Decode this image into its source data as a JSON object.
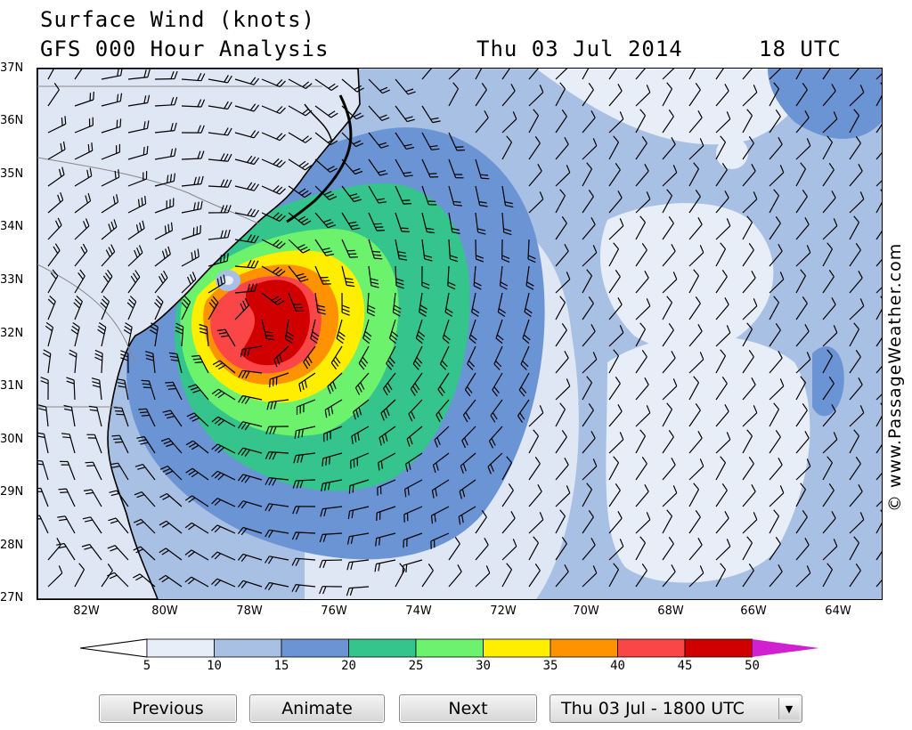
{
  "header": {
    "title_line1": "Surface Wind (knots)",
    "title_line2": "GFS 000 Hour Analysis",
    "date": "Thu 03 Jul 2014",
    "utc": "18 UTC"
  },
  "map": {
    "lat_labels": [
      "37N",
      "36N",
      "35N",
      "34N",
      "33N",
      "32N",
      "31N",
      "30N",
      "29N",
      "28N",
      "27N"
    ],
    "lon_labels": [
      "82W",
      "80W",
      "78W",
      "76W",
      "74W",
      "72W",
      "70W",
      "68W",
      "66W",
      "64W"
    ],
    "credit": "© www.PassageWeather.com",
    "colors": {
      "ocean_light": "#dfe6f4",
      "land": "#dfe6f4",
      "band_5_10": "#e8eef8",
      "band_10_15": "#a8c0e4",
      "band_15_20": "#6a94d4",
      "band_20_25": "#34c48c",
      "band_25_30": "#6cf26c",
      "band_30_35": "#ffee00",
      "band_35_40": "#ff9200",
      "band_40_45": "#fa4646",
      "band_45_50": "#d00000",
      "band_50_plus": "#d020d0"
    }
  },
  "legend": {
    "ticks": [
      "5",
      "10",
      "15",
      "20",
      "25",
      "30",
      "35",
      "40",
      "45",
      "50"
    ],
    "colors": [
      "#e8eef8",
      "#a8c0e4",
      "#6a94d4",
      "#34c48c",
      "#6cf26c",
      "#ffee00",
      "#ff9200",
      "#fa4646",
      "#d00000"
    ],
    "low_color": "#ffffff",
    "high_color": "#d020d0"
  },
  "controls": {
    "previous_label": "Previous",
    "animate_label": "Animate",
    "next_label": "Next",
    "time_selected": "Thu 03 Jul - 1800 UTC"
  }
}
